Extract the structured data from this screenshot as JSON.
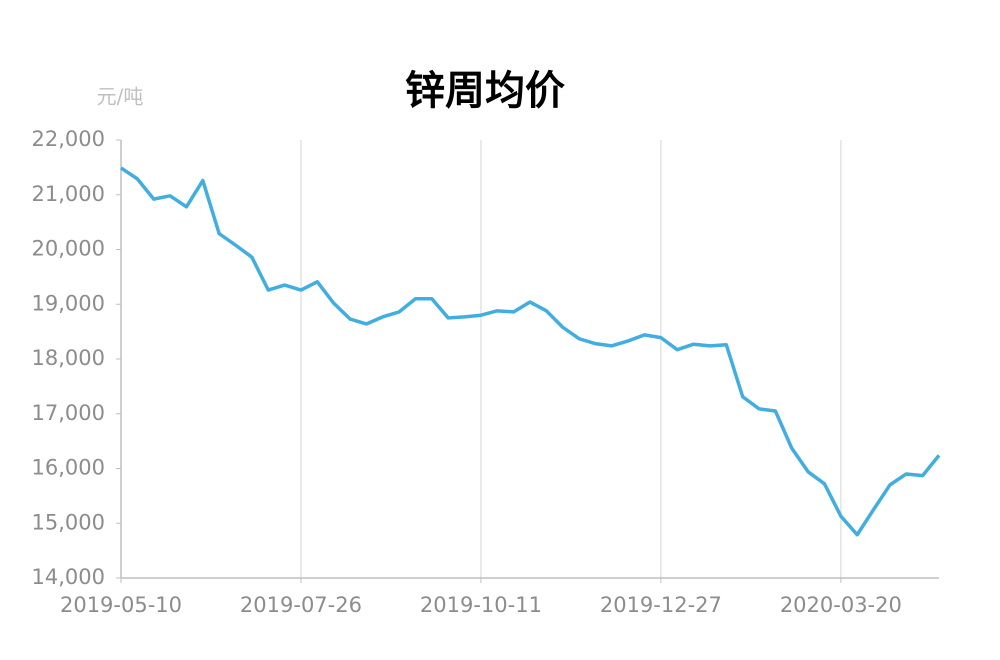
{
  "chart_data": {
    "type": "line",
    "title": "锌周均价",
    "y_label": "元/吨",
    "categories": [
      "2019-05-10",
      null,
      null,
      null,
      null,
      null,
      null,
      null,
      null,
      null,
      null,
      "2019-07-26",
      null,
      null,
      null,
      null,
      null,
      null,
      null,
      null,
      null,
      null,
      "2019-10-11",
      null,
      null,
      null,
      null,
      null,
      null,
      null,
      null,
      null,
      null,
      "2019-12-27",
      null,
      null,
      null,
      null,
      null,
      null,
      null,
      null,
      null,
      null,
      "2020-03-20",
      null,
      null,
      null,
      null,
      null,
      null
    ],
    "series": [
      {
        "name": "锌周均价",
        "color": "#41ade0",
        "values": [
          21490,
          21290,
          20920,
          20980,
          20780,
          21260,
          20290,
          20080,
          19860,
          19260,
          19350,
          19260,
          19410,
          19020,
          18730,
          18640,
          18770,
          18860,
          19100,
          19100,
          18750,
          18770,
          18800,
          18880,
          18860,
          19040,
          18880,
          18580,
          18370,
          18280,
          18240,
          18330,
          18440,
          18390,
          18170,
          18270,
          18240,
          18260,
          17310,
          17090,
          17050,
          16370,
          15940,
          15720,
          15130,
          14790,
          15250,
          15700,
          15900,
          15870,
          16240
        ]
      }
    ],
    "ylim": [
      14000,
      22000
    ],
    "yticks": [
      {
        "value": 14000,
        "label": "14,000"
      },
      {
        "value": 15000,
        "label": "15,000"
      },
      {
        "value": 16000,
        "label": "16,000"
      },
      {
        "value": 17000,
        "label": "17,000"
      },
      {
        "value": 18000,
        "label": "18,000"
      },
      {
        "value": 19000,
        "label": "19,000"
      },
      {
        "value": 20000,
        "label": "20,000"
      },
      {
        "value": 21000,
        "label": "21,000"
      },
      {
        "value": 22000,
        "label": "22,000"
      }
    ],
    "grid": "x"
  }
}
